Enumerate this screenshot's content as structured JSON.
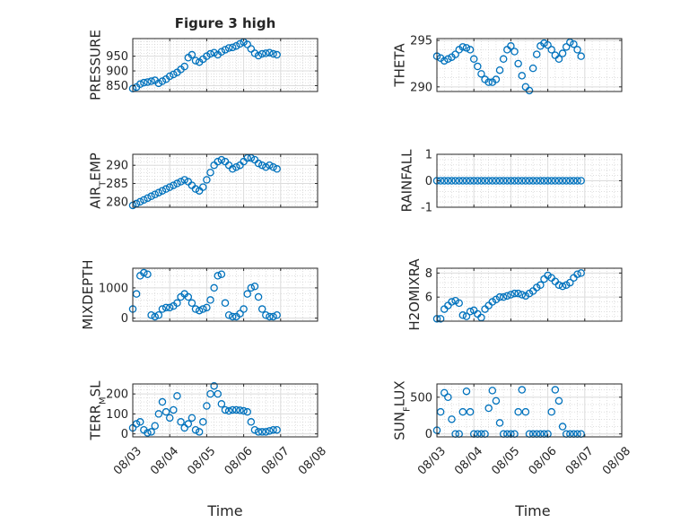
{
  "title": "Figure 3 high",
  "xlabel": "Time",
  "marker_color": "#0072BD",
  "chart_data": [
    {
      "type": "scatter",
      "ylabel": "PRESSURE",
      "ylim": [
        830,
        1010
      ],
      "yticks": [
        "850",
        "900",
        "950"
      ],
      "ytick_values": [
        850,
        900,
        950
      ],
      "x": [
        0,
        0.1,
        0.2,
        0.3,
        0.4,
        0.5,
        0.6,
        0.7,
        0.8,
        0.9,
        1.0,
        1.1,
        1.2,
        1.3,
        1.4,
        1.5,
        1.6,
        1.7,
        1.8,
        1.9,
        2.0,
        2.1,
        2.2,
        2.3,
        2.4,
        2.5,
        2.6,
        2.7,
        2.8,
        2.9,
        3.0,
        3.1,
        3.2,
        3.3,
        3.4,
        3.5,
        3.6,
        3.7,
        3.8,
        3.9
      ],
      "y": [
        840,
        845,
        855,
        860,
        862,
        865,
        868,
        858,
        865,
        872,
        882,
        888,
        895,
        905,
        915,
        945,
        955,
        935,
        930,
        940,
        950,
        958,
        962,
        955,
        965,
        972,
        978,
        980,
        985,
        992,
        998,
        990,
        975,
        960,
        952,
        958,
        960,
        962,
        958,
        955
      ]
    },
    {
      "type": "scatter",
      "ylabel": "THETA",
      "ylim": [
        289.5,
        295.2
      ],
      "yticks": [
        "290",
        "295"
      ],
      "ytick_values": [
        290,
        295
      ],
      "x": [
        0,
        0.1,
        0.2,
        0.3,
        0.4,
        0.5,
        0.6,
        0.7,
        0.8,
        0.9,
        1.0,
        1.1,
        1.2,
        1.3,
        1.4,
        1.5,
        1.6,
        1.7,
        1.8,
        1.9,
        2.0,
        2.1,
        2.2,
        2.3,
        2.4,
        2.5,
        2.6,
        2.7,
        2.8,
        2.9,
        3.0,
        3.1,
        3.2,
        3.3,
        3.4,
        3.5,
        3.6,
        3.7,
        3.8,
        3.9
      ],
      "y": [
        293.3,
        293.1,
        292.8,
        293.0,
        293.2,
        293.5,
        294.0,
        294.3,
        294.2,
        294.0,
        293.0,
        292.2,
        291.4,
        290.8,
        290.5,
        290.5,
        290.8,
        291.8,
        293.0,
        294.0,
        294.4,
        293.8,
        292.5,
        291.2,
        290.0,
        289.6,
        292.0,
        293.5,
        294.4,
        294.7,
        294.5,
        294.0,
        293.4,
        293.0,
        293.6,
        294.3,
        294.8,
        294.6,
        294.0,
        293.3
      ]
    },
    {
      "type": "scatter",
      "ylabel": "AIR_TEMP",
      "ylim": [
        278.5,
        293
      ],
      "yticks": [
        "280",
        "285",
        "290"
      ],
      "ytick_values": [
        280,
        285,
        290
      ],
      "x": [
        0,
        0.1,
        0.2,
        0.3,
        0.4,
        0.5,
        0.6,
        0.7,
        0.8,
        0.9,
        1.0,
        1.1,
        1.2,
        1.3,
        1.4,
        1.5,
        1.6,
        1.7,
        1.8,
        1.9,
        2.0,
        2.1,
        2.2,
        2.3,
        2.4,
        2.5,
        2.6,
        2.7,
        2.8,
        2.9,
        3.0,
        3.1,
        3.2,
        3.3,
        3.4,
        3.5,
        3.6,
        3.7,
        3.8,
        3.9
      ],
      "y": [
        279.0,
        279.5,
        280.0,
        280.5,
        281.0,
        281.5,
        282.0,
        282.5,
        283.0,
        283.5,
        284.0,
        284.5,
        285.0,
        285.5,
        286.0,
        285.5,
        284.5,
        283.5,
        283.0,
        284.0,
        286.0,
        288.0,
        290.0,
        291.0,
        291.5,
        291.0,
        290.0,
        289.0,
        289.5,
        290.0,
        291.0,
        292.0,
        292.0,
        291.5,
        290.5,
        290.0,
        289.5,
        290.0,
        289.5,
        289.0
      ]
    },
    {
      "type": "scatter",
      "ylabel": "RAINFALL",
      "ylim": [
        -1,
        1
      ],
      "yticks": [
        "-1",
        "0",
        "1"
      ],
      "ytick_values": [
        -1,
        0,
        1
      ],
      "x": [
        0,
        0.1,
        0.2,
        0.3,
        0.4,
        0.5,
        0.6,
        0.7,
        0.8,
        0.9,
        1.0,
        1.1,
        1.2,
        1.3,
        1.4,
        1.5,
        1.6,
        1.7,
        1.8,
        1.9,
        2.0,
        2.1,
        2.2,
        2.3,
        2.4,
        2.5,
        2.6,
        2.7,
        2.8,
        2.9,
        3.0,
        3.1,
        3.2,
        3.3,
        3.4,
        3.5,
        3.6,
        3.7,
        3.8,
        3.9
      ],
      "y": [
        0,
        0,
        0,
        0,
        0,
        0,
        0,
        0,
        0,
        0,
        0,
        0,
        0,
        0,
        0,
        0,
        0,
        0,
        0,
        0,
        0,
        0,
        0,
        0,
        0,
        0,
        0,
        0,
        0,
        0,
        0,
        0,
        0,
        0,
        0,
        0,
        0,
        0,
        0,
        0
      ]
    },
    {
      "type": "scatter",
      "ylabel": "MIXDEPTH",
      "ylim": [
        -100,
        1650
      ],
      "yticks": [
        "0",
        "1000"
      ],
      "ytick_values": [
        0,
        1000
      ],
      "x": [
        0,
        0.1,
        0.2,
        0.3,
        0.4,
        0.5,
        0.6,
        0.7,
        0.8,
        0.9,
        1.0,
        1.1,
        1.2,
        1.3,
        1.4,
        1.5,
        1.6,
        1.7,
        1.8,
        1.9,
        2.0,
        2.1,
        2.2,
        2.3,
        2.4,
        2.5,
        2.6,
        2.7,
        2.8,
        2.9,
        3.0,
        3.1,
        3.2,
        3.3,
        3.4,
        3.5,
        3.6,
        3.7,
        3.8,
        3.9
      ],
      "y": [
        300,
        800,
        1400,
        1500,
        1450,
        100,
        50,
        100,
        300,
        350,
        350,
        400,
        500,
        700,
        800,
        700,
        500,
        300,
        250,
        300,
        350,
        600,
        1000,
        1400,
        1450,
        500,
        100,
        50,
        50,
        150,
        300,
        800,
        1000,
        1050,
        700,
        300,
        100,
        50,
        50,
        100
      ]
    },
    {
      "type": "scatter",
      "ylabel": "H2OMIXRA",
      "ylim": [
        4,
        8.4
      ],
      "yticks": [
        "6",
        "8"
      ],
      "ytick_values": [
        6,
        8
      ],
      "x": [
        0,
        0.1,
        0.2,
        0.3,
        0.4,
        0.5,
        0.6,
        0.7,
        0.8,
        0.9,
        1.0,
        1.1,
        1.2,
        1.3,
        1.4,
        1.5,
        1.6,
        1.7,
        1.8,
        1.9,
        2.0,
        2.1,
        2.2,
        2.3,
        2.4,
        2.5,
        2.6,
        2.7,
        2.8,
        2.9,
        3.0,
        3.1,
        3.2,
        3.3,
        3.4,
        3.5,
        3.6,
        3.7,
        3.8,
        3.9
      ],
      "y": [
        4.2,
        4.2,
        5.0,
        5.3,
        5.6,
        5.7,
        5.5,
        4.5,
        4.4,
        4.8,
        4.9,
        4.6,
        4.3,
        5.0,
        5.3,
        5.6,
        5.8,
        6.0,
        6.0,
        6.1,
        6.2,
        6.3,
        6.3,
        6.2,
        6.1,
        6.3,
        6.5,
        6.8,
        7.0,
        7.5,
        7.8,
        7.6,
        7.3,
        7.0,
        6.9,
        7.0,
        7.2,
        7.6,
        7.9,
        8.0
      ]
    },
    {
      "type": "scatter",
      "ylabel": "TERR_MSL",
      "ylim": [
        -15,
        250
      ],
      "yticks": [
        "0",
        "100",
        "200"
      ],
      "ytick_values": [
        0,
        100,
        200
      ],
      "x": [
        0,
        0.1,
        0.2,
        0.3,
        0.4,
        0.5,
        0.6,
        0.7,
        0.8,
        0.9,
        1.0,
        1.1,
        1.2,
        1.3,
        1.4,
        1.5,
        1.6,
        1.7,
        1.8,
        1.9,
        2.0,
        2.1,
        2.2,
        2.3,
        2.4,
        2.5,
        2.6,
        2.7,
        2.8,
        2.9,
        3.0,
        3.1,
        3.2,
        3.3,
        3.4,
        3.5,
        3.6,
        3.7,
        3.8,
        3.9
      ],
      "y": [
        30,
        50,
        60,
        20,
        5,
        10,
        40,
        100,
        160,
        110,
        80,
        120,
        190,
        60,
        30,
        50,
        80,
        20,
        10,
        60,
        140,
        200,
        240,
        200,
        150,
        120,
        115,
        120,
        120,
        118,
        115,
        110,
        60,
        20,
        10,
        10,
        10,
        15,
        20,
        20
      ]
    },
    {
      "type": "scatter",
      "ylabel": "SUN_FLUX",
      "ylim": [
        -40,
        680
      ],
      "yticks": [
        "0",
        "500"
      ],
      "ytick_values": [
        0,
        500
      ],
      "x": [
        0,
        0.1,
        0.2,
        0.3,
        0.4,
        0.5,
        0.6,
        0.7,
        0.8,
        0.9,
        1.0,
        1.1,
        1.2,
        1.3,
        1.4,
        1.5,
        1.6,
        1.7,
        1.8,
        1.9,
        2.0,
        2.1,
        2.2,
        2.3,
        2.4,
        2.5,
        2.6,
        2.7,
        2.8,
        2.9,
        3.0,
        3.1,
        3.2,
        3.3,
        3.4,
        3.5,
        3.6,
        3.7,
        3.8,
        3.9
      ],
      "y": [
        50,
        300,
        560,
        500,
        200,
        0,
        0,
        300,
        580,
        300,
        0,
        0,
        0,
        0,
        350,
        590,
        450,
        150,
        0,
        0,
        0,
        0,
        300,
        600,
        300,
        0,
        0,
        0,
        0,
        0,
        0,
        300,
        600,
        450,
        100,
        0,
        0,
        0,
        0,
        0
      ]
    }
  ],
  "x_axis": {
    "ticks": [
      "08/03",
      "08/04",
      "08/05",
      "08/06",
      "08/07",
      "08/08"
    ],
    "tick_values": [
      0,
      1,
      2,
      3,
      4,
      5
    ],
    "xlim": [
      0,
      5
    ]
  }
}
